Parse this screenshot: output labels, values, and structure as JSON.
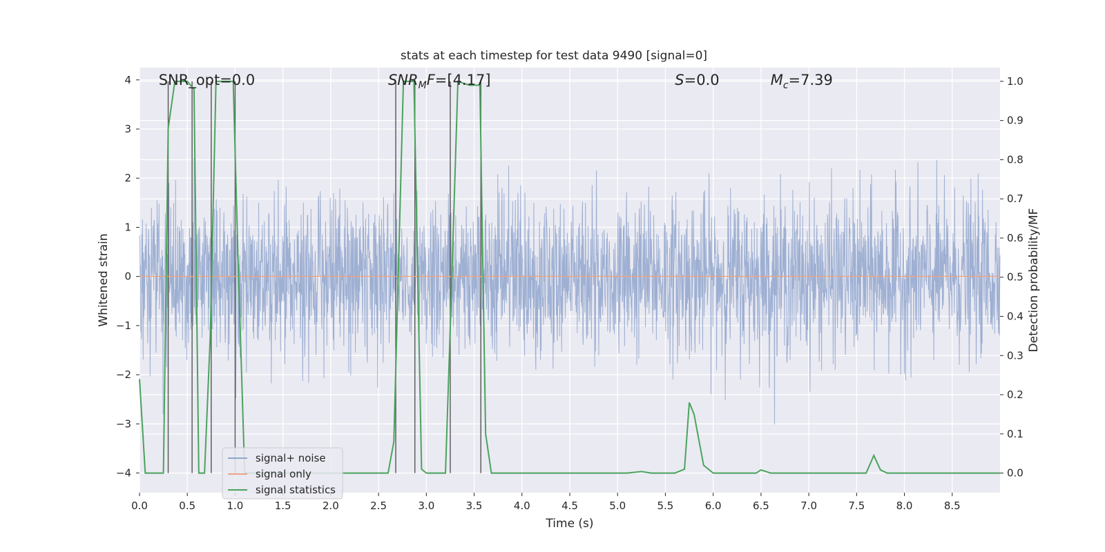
{
  "chart_data": {
    "type": "line",
    "title": "stats at each timestep for test data 9490 [signal=0]",
    "xlabel": "Time (s)",
    "ylabel": "Whitened strain",
    "y2label": "Detection probability/MF",
    "xlim": [
      0,
      9.0
    ],
    "ylim": [
      -4.4,
      4.25
    ],
    "y2lim": [
      -0.05,
      1.035
    ],
    "xticks": [
      0.0,
      0.5,
      1.0,
      1.5,
      2.0,
      2.5,
      3.0,
      3.5,
      4.0,
      4.5,
      5.0,
      5.5,
      6.0,
      6.5,
      7.0,
      7.5,
      8.0,
      8.5
    ],
    "xtick_labels": [
      "0.0",
      "0.5",
      "1.0",
      "1.5",
      "2.0",
      "2.5",
      "3.0",
      "3.5",
      "4.0",
      "4.5",
      "5.0",
      "5.5",
      "6.0",
      "6.5",
      "7.0",
      "7.5",
      "8.0",
      "8.5"
    ],
    "yticks": [
      -4,
      -3,
      -2,
      -1,
      0,
      1,
      2,
      3,
      4
    ],
    "ytick_labels": [
      "−4",
      "−3",
      "−2",
      "−1",
      "0",
      "1",
      "2",
      "3",
      "4"
    ],
    "y2ticks": [
      0.0,
      0.1,
      0.2,
      0.3,
      0.4,
      0.5,
      0.6,
      0.7,
      0.8,
      0.9,
      1.0
    ],
    "y2tick_labels": [
      "0.0",
      "0.1",
      "0.2",
      "0.3",
      "0.4",
      "0.5",
      "0.6",
      "0.7",
      "0.8",
      "0.9",
      "1.0"
    ],
    "grid": true,
    "legend_position": "lower-left",
    "annotations": [
      {
        "text": "SNR_opt=0.0",
        "x": 0.2
      },
      {
        "text": "SNR_MF=[4.17]",
        "x": 2.6
      },
      {
        "text": "S=0.0",
        "x": 5.6
      },
      {
        "text": "M_c=7.39",
        "x": 6.6
      }
    ],
    "series": [
      {
        "name": "signal+ noise",
        "color": "#8fa4cc",
        "axis": "left",
        "kind": "noise",
        "sigma": 0.8,
        "range": [
          -4.0,
          3.5
        ]
      },
      {
        "name": "signal only",
        "color": "#e8a386",
        "axis": "left",
        "x": [
          0,
          9.0
        ],
        "values": [
          0,
          0
        ]
      },
      {
        "name": "signal statistics",
        "color": "#4aa35c",
        "axis": "right",
        "x": [
          0.0,
          0.06,
          0.25,
          0.3,
          0.37,
          0.5,
          0.57,
          0.62,
          0.68,
          0.74,
          0.8,
          0.98,
          1.03,
          1.1,
          1.2,
          2.6,
          2.66,
          2.76,
          2.87,
          2.95,
          3.0,
          3.2,
          3.25,
          3.33,
          3.45,
          3.56,
          3.62,
          3.68,
          3.75,
          4.5,
          5.1,
          5.25,
          5.35,
          5.6,
          5.7,
          5.75,
          5.8,
          5.9,
          6.0,
          6.1,
          6.45,
          6.5,
          6.6,
          7.4,
          7.6,
          7.68,
          7.75,
          7.82,
          9.0
        ],
        "values": [
          0.24,
          0.0,
          0.0,
          0.88,
          1.0,
          1.0,
          0.98,
          0.0,
          0.0,
          0.35,
          1.0,
          1.0,
          0.55,
          0.0,
          0.0,
          0.0,
          0.08,
          1.0,
          1.0,
          0.01,
          0.0,
          0.0,
          0.37,
          1.0,
          0.99,
          0.99,
          0.1,
          0.0,
          0.0,
          0.0,
          0.0,
          0.004,
          0.0,
          0.0,
          0.01,
          0.18,
          0.15,
          0.02,
          0.0,
          0.0,
          0.0,
          0.008,
          0.0,
          0.0,
          0.0,
          0.045,
          0.008,
          0.0,
          0.0
        ]
      }
    ],
    "vertical_lines": [
      0.3,
      0.55,
      0.75,
      1.0,
      2.68,
      2.88,
      3.25,
      3.57
    ],
    "vertical_line_color": "#555555"
  }
}
